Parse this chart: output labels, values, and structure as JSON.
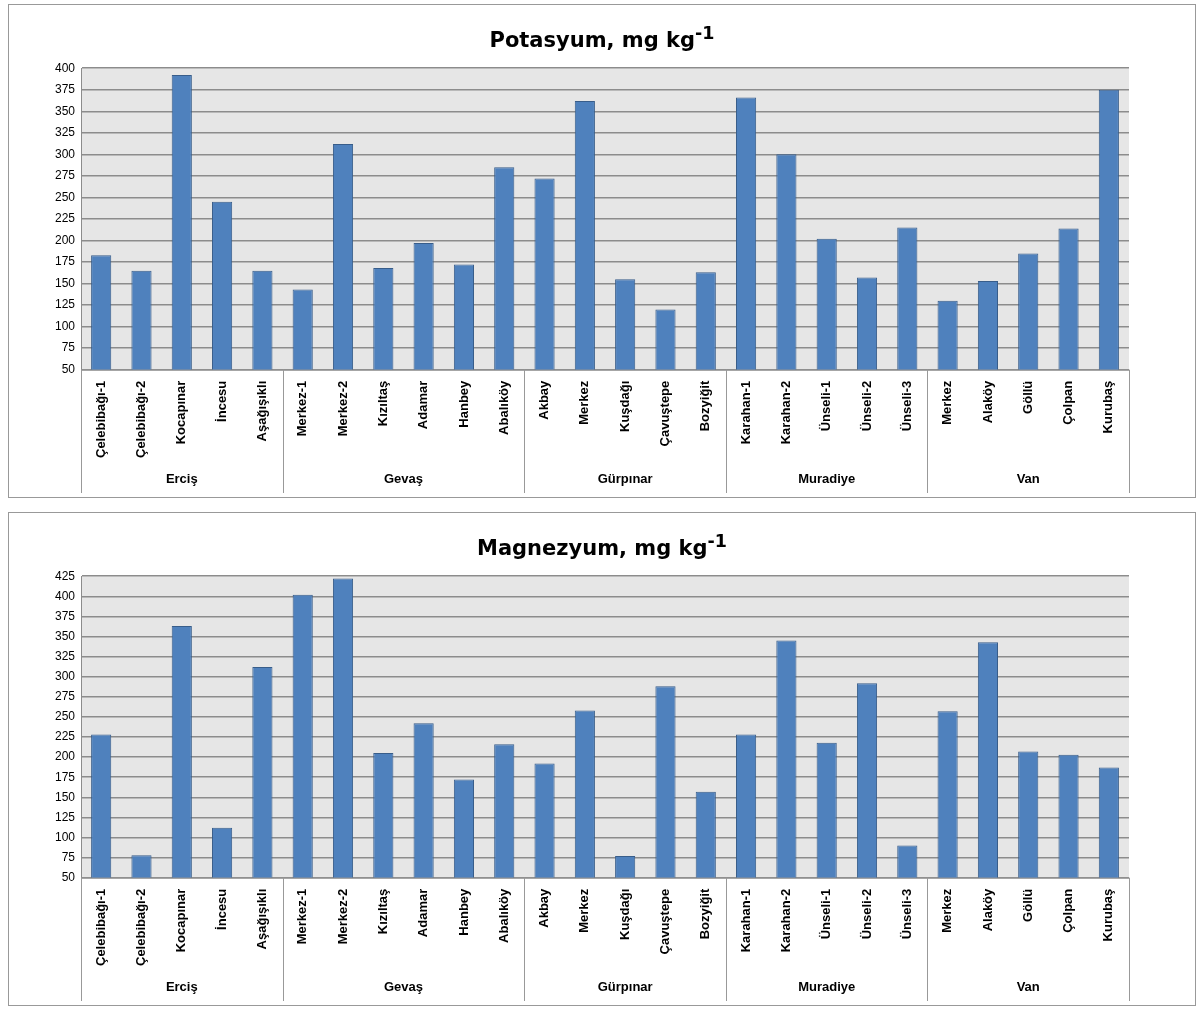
{
  "chart_data": [
    {
      "type": "bar",
      "title": "Potasyum, mg kg$^{-1}$",
      "categories": [
        "Çelebibağı-1",
        "Çelebibağı-2",
        "Kocapınar",
        "İncesu",
        "Aşağışıklı",
        "Merkez-1",
        "Merkez-2",
        "Kızıltaş",
        "Adamar",
        "Hanbey",
        "Abalıköy",
        "Akbay",
        "Merkez",
        "Kuşdağı",
        "Çavuştepe",
        "Bozyiğit",
        "Karahan-1",
        "Karahan-2",
        "Ünseli-1",
        "Ünseli-2",
        "Ünseli-3",
        "Merkez",
        "Alaköy",
        "Göllü",
        "Çolpan",
        "Kurubaş"
      ],
      "values": [
        183,
        165,
        392,
        245,
        165,
        143,
        312,
        168,
        197,
        172,
        285,
        272,
        362,
        155,
        120,
        163,
        366,
        300,
        202,
        157,
        215,
        130,
        153,
        185,
        214,
        375
      ],
      "color": "#4f81bd",
      "ylim": [
        50,
        400
      ],
      "yticks": [
        50,
        75,
        100,
        125,
        150,
        175,
        200,
        225,
        250,
        275,
        300,
        325,
        350,
        375,
        400
      ],
      "grid": "y",
      "legend": false,
      "annotations": [
        "Erciş",
        "Gevaş",
        "Gürpınar",
        "Muradiye",
        "Van"
      ]
    },
    {
      "type": "bar",
      "title": "Magnezyum, mg kg$^{-1}$",
      "categories": [
        "Çelebibağı-1",
        "Çelebibağı-2",
        "Kocapınar",
        "İncesu",
        "Aşağışıklı",
        "Merkez-1",
        "Merkez-2",
        "Kızıltaş",
        "Adamar",
        "Hanbey",
        "Abalıköy",
        "Akbay",
        "Merkez",
        "Kuşdağı",
        "Çavuştepe",
        "Bozyiğit",
        "Karahan-1",
        "Karahan-2",
        "Ünseli-1",
        "Ünseli-2",
        "Ünseli-3",
        "Merkez",
        "Alaköy",
        "Göllü",
        "Çolpan",
        "Kurubaş"
      ],
      "values": [
        228,
        78,
        363,
        112,
        312,
        402,
        422,
        205,
        242,
        172,
        216,
        192,
        258,
        77,
        288,
        157,
        228,
        345,
        218,
        292,
        90,
        257,
        343,
        207,
        203,
        187
      ],
      "color": "#4f81bd",
      "ylim": [
        50,
        425
      ],
      "yticks": [
        50,
        75,
        100,
        125,
        150,
        175,
        200,
        225,
        250,
        275,
        300,
        325,
        350,
        375,
        400,
        425
      ],
      "grid": "y",
      "legend": false,
      "annotations": [
        "Erciş",
        "Gevaş",
        "Gürpınar",
        "Muradiye",
        "Van"
      ]
    }
  ]
}
